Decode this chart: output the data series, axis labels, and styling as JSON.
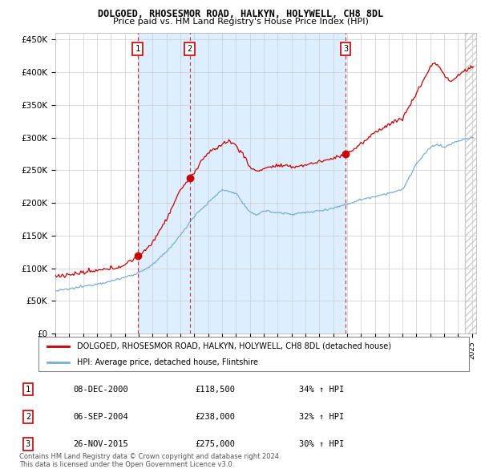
{
  "title1": "DOLGOED, RHOSESMOR ROAD, HALKYN, HOLYWELL, CH8 8DL",
  "title2": "Price paid vs. HM Land Registry's House Price Index (HPI)",
  "ylim": [
    0,
    460000
  ],
  "ytick_vals": [
    0,
    50000,
    100000,
    150000,
    200000,
    250000,
    300000,
    350000,
    400000,
    450000
  ],
  "ytick_labels": [
    "£0",
    "£50K",
    "£100K",
    "£150K",
    "£200K",
    "£250K",
    "£300K",
    "£350K",
    "£400K",
    "£450K"
  ],
  "xlim_start": 1995.0,
  "xlim_end": 2025.3,
  "sale_dates": [
    "08-DEC-2000",
    "06-SEP-2004",
    "26-NOV-2015"
  ],
  "sale_prices": [
    118500,
    238000,
    275000
  ],
  "sale_prices_fmt": [
    "£118,500",
    "£238,000",
    "£275,000"
  ],
  "sale_hpi_pct": [
    "34% ↑ HPI",
    "32% ↑ HPI",
    "30% ↑ HPI"
  ],
  "sale_years": [
    2000.93,
    2004.68,
    2015.9
  ],
  "legend_label_red": "DOLGOED, RHOSESMOR ROAD, HALKYN, HOLYWELL, CH8 8DL (detached house)",
  "legend_label_blue": "HPI: Average price, detached house, Flintshire",
  "copyright": "Contains HM Land Registry data © Crown copyright and database right 2024.\nThis data is licensed under the Open Government Licence v3.0.",
  "red_color": "#cc0000",
  "blue_color": "#7aadd4",
  "shade_color": "#ddeeff",
  "bg_color": "#ffffff",
  "grid_color": "#cccccc",
  "hatch_color": "#cccccc"
}
